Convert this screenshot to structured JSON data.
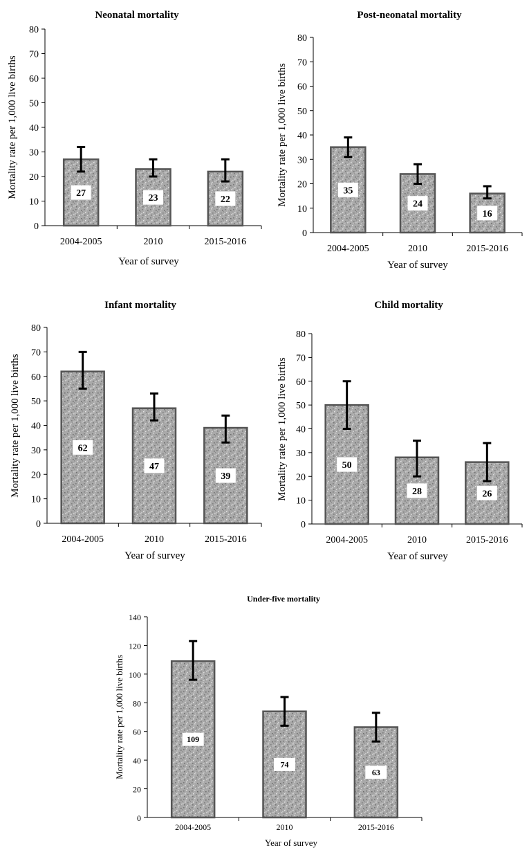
{
  "chart_data": [
    {
      "type": "bar",
      "title": "Neonatal  mortality",
      "xlabel": "Year of survey",
      "ylabel": "Mortality rate per 1,000 live births",
      "categories": [
        "2004-2005",
        "2010",
        "2015-2016"
      ],
      "values": [
        27,
        23,
        22
      ],
      "data_labels": [
        "27",
        "23",
        "22"
      ],
      "error_low": [
        22,
        20,
        18
      ],
      "error_high": [
        32,
        27,
        27
      ],
      "ylim": [
        0,
        80
      ],
      "yticks": [
        0,
        10,
        20,
        30,
        40,
        50,
        60,
        70,
        80
      ],
      "ytick_labels": [
        "0",
        "10",
        "20",
        "30",
        "40",
        "50",
        "60",
        "70",
        "80"
      ],
      "grid": false
    },
    {
      "type": "bar",
      "title": "Post-neonatal  mortality",
      "xlabel": "Year of survey",
      "ylabel": "Mortality rate per 1,000 live births",
      "categories": [
        "2004-2005",
        "2010",
        "2015-2016"
      ],
      "values": [
        35,
        24,
        16
      ],
      "data_labels": [
        "35",
        "24",
        "16"
      ],
      "error_low": [
        31,
        20,
        14
      ],
      "error_high": [
        39,
        28,
        19
      ],
      "ylim": [
        0,
        80
      ],
      "yticks": [
        0,
        10,
        20,
        30,
        40,
        50,
        60,
        70,
        80
      ],
      "ytick_labels": [
        "0",
        "10",
        "20",
        "30",
        "40",
        "50",
        "60",
        "70",
        "80"
      ],
      "grid": false
    },
    {
      "type": "bar",
      "title": "Infant  mortality",
      "xlabel": "Year of survey",
      "ylabel": "Mortality rate per 1,000 live births",
      "categories": [
        "2004-2005",
        "2010",
        "2015-2016"
      ],
      "values": [
        62,
        47,
        39
      ],
      "data_labels": [
        "62",
        "47",
        "39"
      ],
      "error_low": [
        55,
        42,
        33
      ],
      "error_high": [
        70,
        53,
        44
      ],
      "ylim": [
        0,
        80
      ],
      "yticks": [
        0,
        10,
        20,
        30,
        40,
        50,
        60,
        70,
        80
      ],
      "ytick_labels": [
        "0",
        "10",
        "20",
        "30",
        "40",
        "50",
        "60",
        "70",
        "80"
      ],
      "grid": false
    },
    {
      "type": "bar",
      "title": "Child  mortality",
      "xlabel": "Year of survey",
      "ylabel": "Mortality rate per 1,000 live births",
      "categories": [
        "2004-2005",
        "2010",
        "2015-2016"
      ],
      "values": [
        50,
        28,
        26
      ],
      "data_labels": [
        "50",
        "28",
        "26"
      ],
      "error_low": [
        40,
        20,
        18
      ],
      "error_high": [
        60,
        35,
        34
      ],
      "ylim": [
        0,
        80
      ],
      "yticks": [
        0,
        10,
        20,
        30,
        40,
        50,
        60,
        70,
        80
      ],
      "ytick_labels": [
        "0",
        "10",
        "20",
        "30",
        "40",
        "50",
        "60",
        "70",
        "80"
      ],
      "grid": false
    },
    {
      "type": "bar",
      "title": "Under-five  mortality",
      "xlabel": "Year of survey",
      "ylabel": "Mortality rate per 1,000 live births",
      "categories": [
        "2004-2005",
        "2010",
        "2015-2016"
      ],
      "values": [
        109,
        74,
        63
      ],
      "data_labels": [
        "109",
        "74",
        "63"
      ],
      "error_low": [
        96,
        64,
        53
      ],
      "error_high": [
        123,
        84,
        73
      ],
      "ylim": [
        0,
        140
      ],
      "yticks": [
        0,
        20,
        40,
        60,
        80,
        100,
        120,
        140
      ],
      "ytick_labels": [
        "0",
        "20",
        "40",
        "60",
        "80",
        "100",
        "120",
        "140"
      ],
      "grid": false
    }
  ],
  "colors": {
    "bar_fill": "#a9a9a9",
    "bar_stroke": "#555555",
    "error_bar": "#000000",
    "axis": "#000000"
  },
  "bar_texture": "speckled-gray"
}
